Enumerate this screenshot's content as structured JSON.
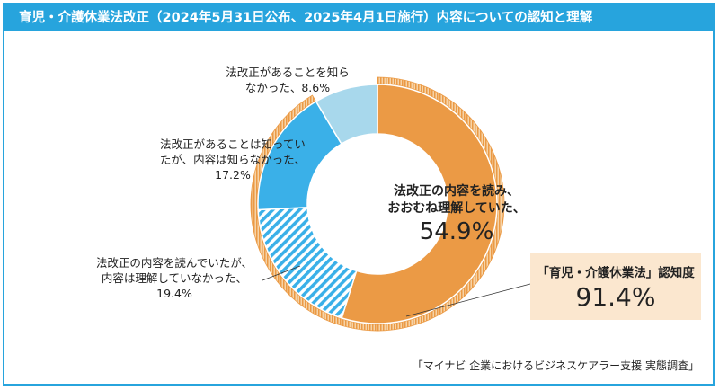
{
  "title": "育児・介護休業法改正（2024年5月31日公布、2025年4月1日施行）内容についての認知と理解",
  "chart_data": {
    "type": "pie",
    "variant": "donut",
    "slices": [
      {
        "label_lines": [
          "法改正の内容を読み、",
          "おおむね理解していた、"
        ],
        "value": 54.9,
        "value_text": "54.9%",
        "color": "#eb9a45",
        "pattern": "solid"
      },
      {
        "label_lines": [
          "法改正の内容を読んでいたが、",
          "内容は理解していなかった、"
        ],
        "value": 19.4,
        "value_text": "19.4%",
        "color": "#3ab0e8",
        "pattern": "diagonal-stripes"
      },
      {
        "label_lines": [
          "法改正があることは知ってい",
          "たが、内容は知らなかった、"
        ],
        "value": 17.2,
        "value_text": "17.2%",
        "color": "#3ab0e8",
        "pattern": "solid"
      },
      {
        "label_lines": [
          "法改正があることを知ら",
          "なかった、8.6%"
        ],
        "value": 8.6,
        "value_text": "8.6%",
        "color": "#a8d8ec",
        "pattern": "solid"
      }
    ],
    "outer_ring": {
      "value": 91.4,
      "color": "#eb9a45",
      "pattern": "vertical-stripes"
    },
    "awareness_callout": {
      "title": "「育児・介護休業法」認知度",
      "value_text": "91.4%"
    }
  },
  "source": "「マイナビ 企業におけるビジネスケアラー支援 実態調査」",
  "colors": {
    "title_bar": "#27a4dd",
    "callout_bg": "#fbe7cf"
  }
}
